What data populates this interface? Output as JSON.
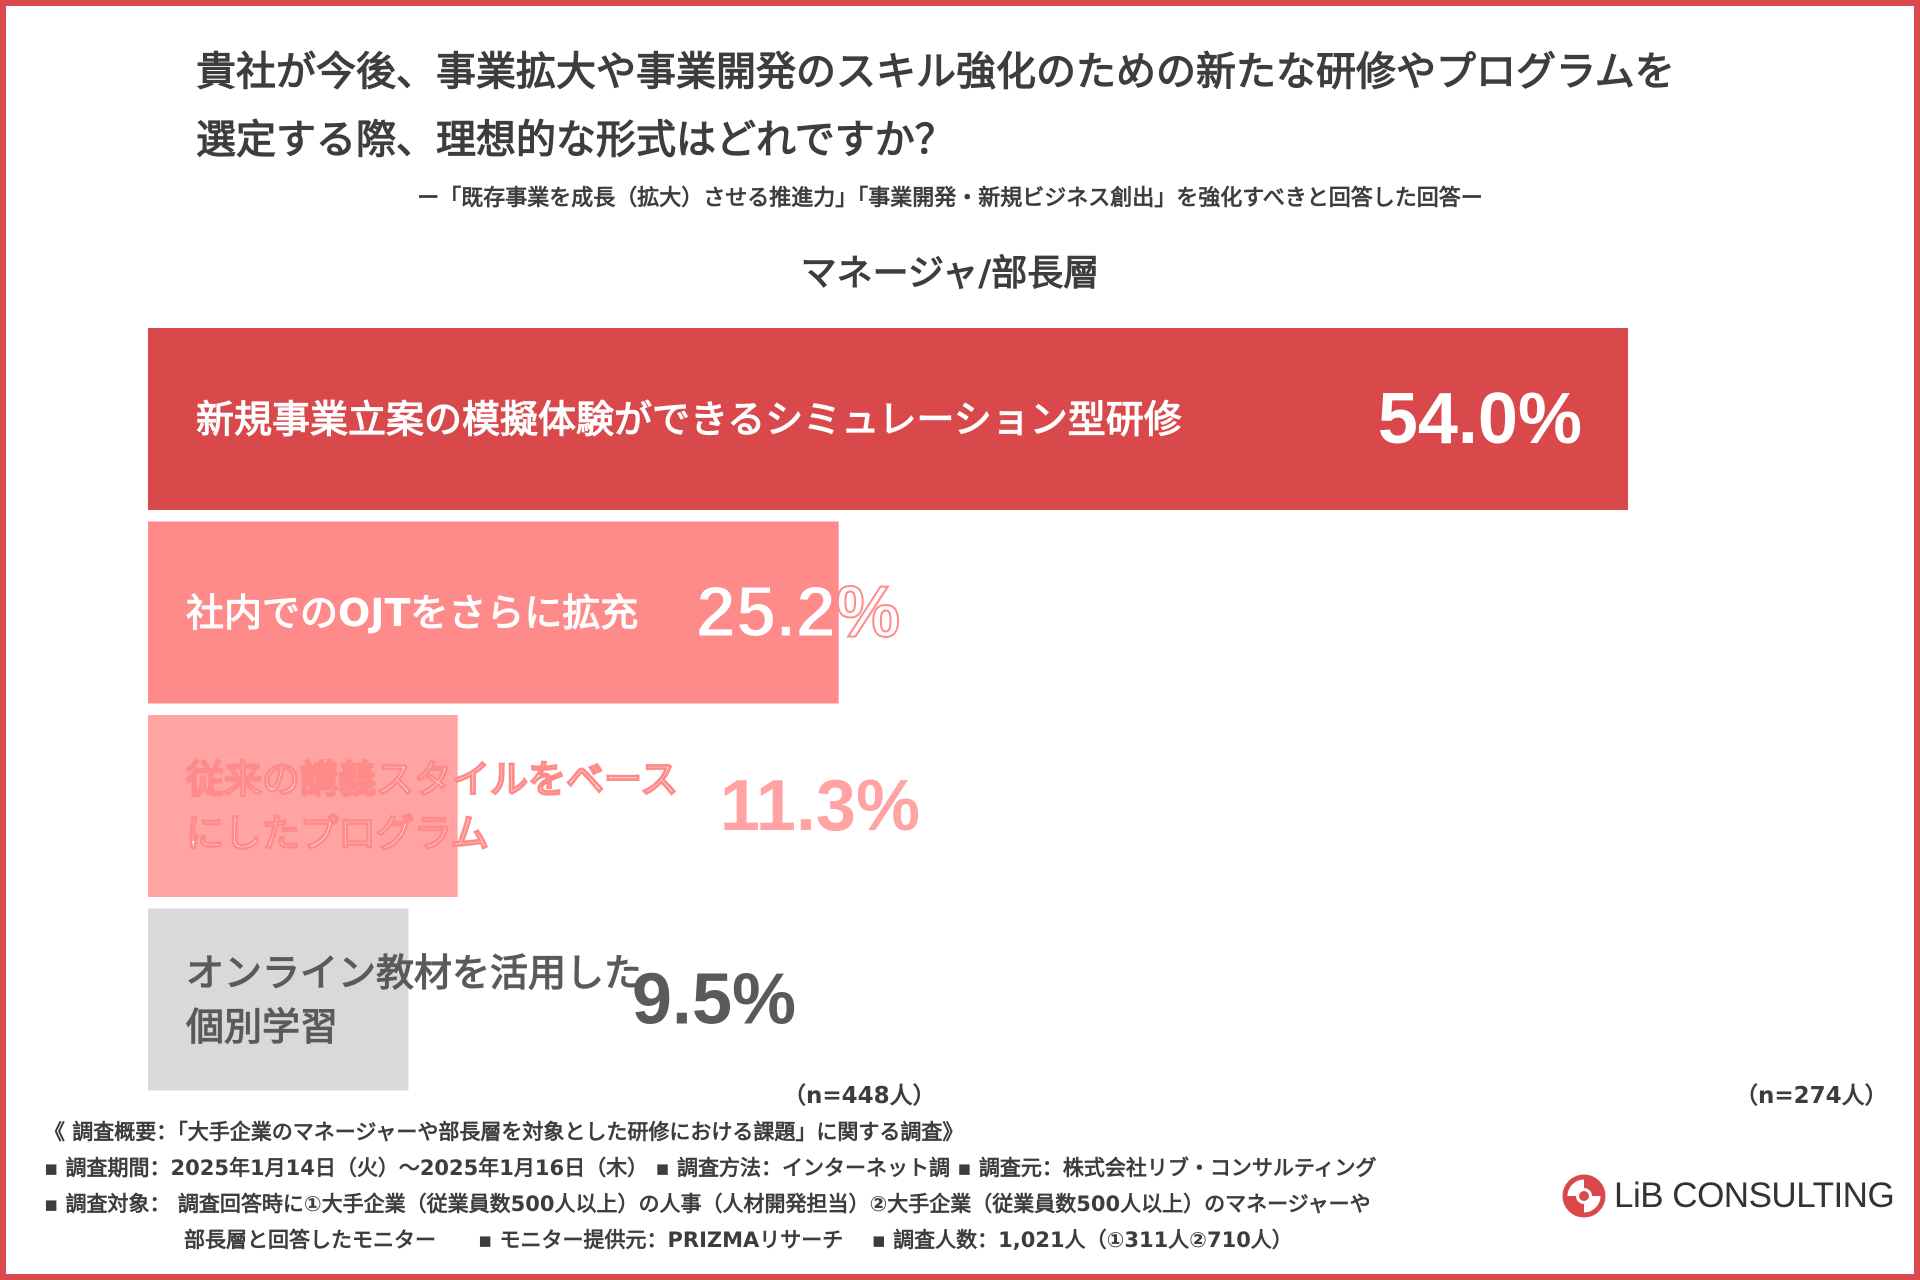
{
  "title_line1": "貴社が今後、事業拡大や事業開発のスキル強化のための新たな研修やプログラムを",
  "title_line2": "選定する際、理想的な形式はどれですか？",
  "subtitle": "ー「既存事業を成長（拡大）させる推進力」「事業開発・新規ビジネス創出」を強化すべきと回答した回答ー",
  "section_label": "マネージャ/部長層",
  "chart_data": {
    "type": "bar",
    "orientation": "horizontal",
    "categories": [
      [
        "新規事業立案の模擬体験ができるシミュレーション型研修"
      ],
      [
        "社内でのOJTをさらに拡充"
      ],
      [
        "従来の講義スタイルをベース",
        "にしたプログラム"
      ],
      [
        "オンライン教材を活用した",
        "個別学習"
      ]
    ],
    "values": [
      54.0,
      25.2,
      11.3,
      9.5
    ],
    "value_labels": [
      "54.0%",
      "25.2%",
      "11.3%",
      "9.5%"
    ],
    "xlim": [
      0,
      54.0
    ],
    "colors": [
      "#d9484b",
      "#ff8a8a",
      "#ffa3a3",
      "#d9d9d9"
    ],
    "label_colors": [
      "#ffffff",
      "#ffffff",
      "#ffffff",
      "#5a5a5a"
    ],
    "value_colors": [
      "#ffffff",
      "#ffffff",
      "#ffa3a3",
      "#5a5a5a"
    ],
    "grid": false,
    "legend": "none"
  },
  "sample_left": "（n=448人）",
  "sample_right": "（n=274人）",
  "footer": {
    "line1": "《 調査概要：「大手企業のマネージャーや部長層を対象とした研修における課題」に関する調査》",
    "line2": "▪ 調査期間：2025年1月14日（火）～2025年1月16日（木） ▪ 調査方法：インターネット調 ▪ 調査元：株式会社リブ・コンサルティング",
    "line3": "▪ 調査対象： 調査回答時に①大手企業（従業員数500人以上）の人事（人材開発担当）②大手企業（従業員数500人以上）のマネージャーや",
    "line4": "部長層と回答したモニター　　▪ モニター提供元：PRIZMAリサーチ　 ▪ 調査人数：1,021人（①311人②710人）"
  },
  "logo_text": "LiB CONSULTING",
  "logo_color": "#d9484b"
}
